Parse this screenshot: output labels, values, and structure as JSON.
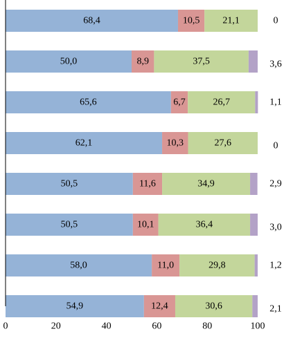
{
  "chart_data": {
    "type": "bar",
    "orientation": "horizontal",
    "stacked": true,
    "title": "",
    "xlabel": "",
    "ylabel": "",
    "xlim": [
      0,
      100
    ],
    "xticks": [
      0,
      20,
      40,
      60,
      80,
      100
    ],
    "grid": false,
    "legend": "none",
    "colors": [
      "#95b3d7",
      "#d99694",
      "#c3d69b",
      "#b3a2c7"
    ],
    "series": [
      {
        "values": [
          "68,4",
          "50,0",
          "65,6",
          "62,1",
          "50,5",
          "50,5",
          "58,0",
          "54,9"
        ]
      },
      {
        "values": [
          "10,5",
          "8,9",
          "6,7",
          "10,3",
          "11,6",
          "10,1",
          "11,0",
          "12,4"
        ]
      },
      {
        "values": [
          "21,1",
          "37,5",
          "26,7",
          "27,6",
          "34,9",
          "36,4",
          "29,8",
          "30,6"
        ]
      },
      {
        "values": [
          "0",
          "3,6",
          "1,1",
          "0",
          "2,9",
          "3,0",
          "1,2",
          "2,1"
        ]
      }
    ]
  }
}
